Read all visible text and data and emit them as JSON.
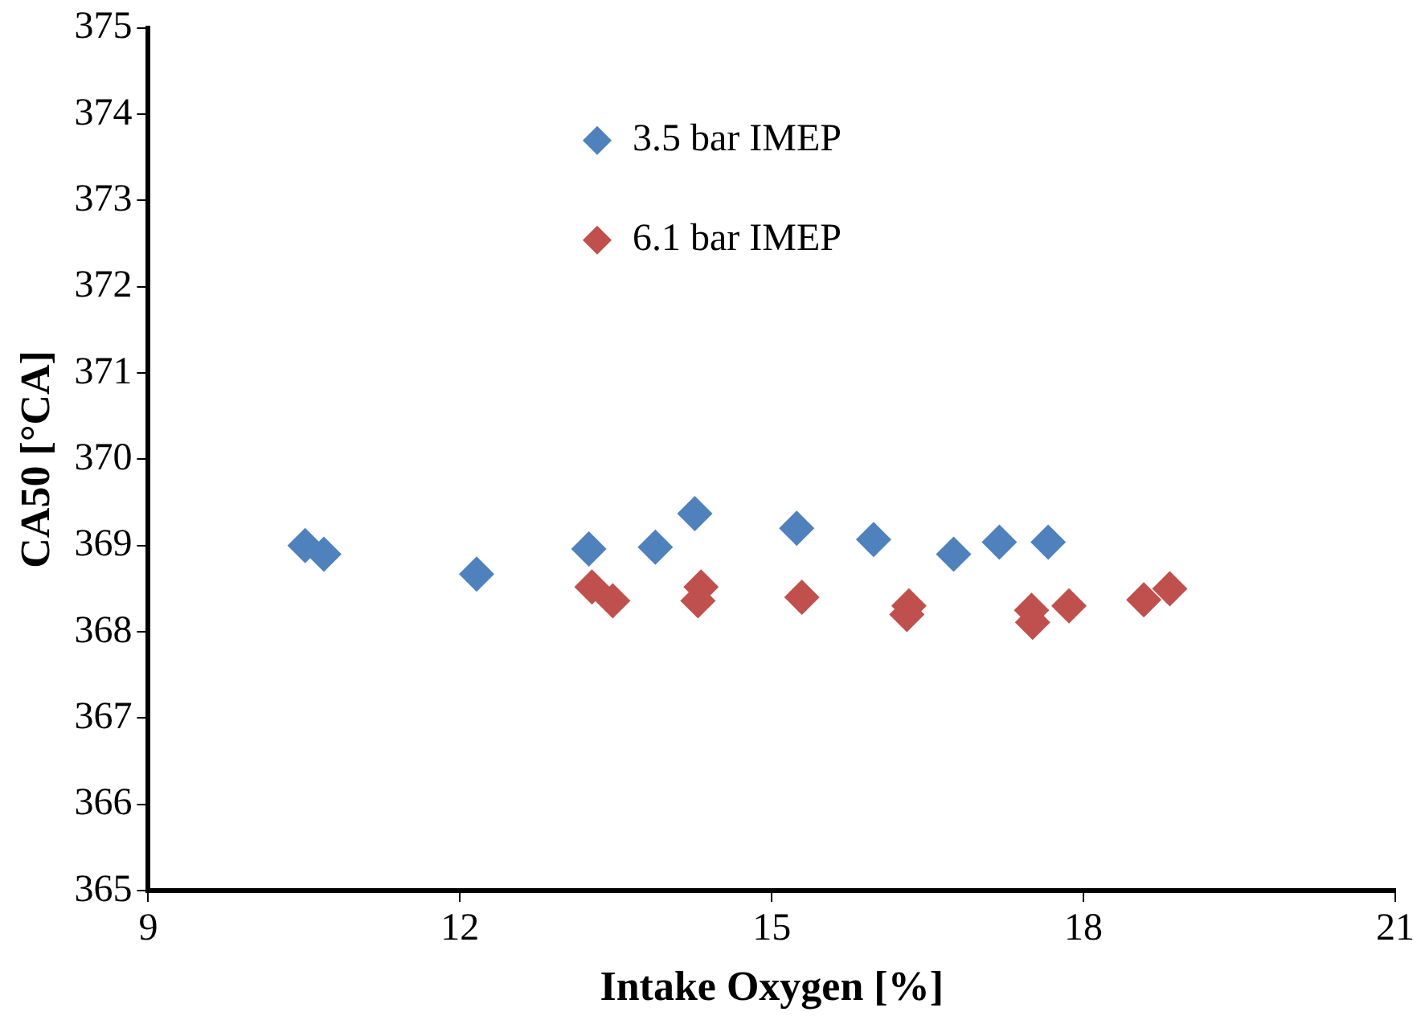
{
  "chart_data": {
    "type": "scatter",
    "xlabel": "Intake Oxygen [%]",
    "ylabel": "CA50 [°CA]",
    "xlim": [
      9,
      21
    ],
    "xticks": [
      9,
      12,
      15,
      18,
      21
    ],
    "ylim": [
      365,
      375
    ],
    "yticks": [
      365,
      366,
      367,
      368,
      369,
      370,
      371,
      372,
      373,
      374,
      375
    ],
    "grid": false,
    "legend": "top",
    "marker": "diamond",
    "series": [
      {
        "name": "3.5 bar IMEP",
        "color": "#4f81bd",
        "x": [
          10.51,
          10.69,
          12.16,
          13.24,
          13.88,
          14.26,
          15.24,
          15.98,
          16.75,
          17.19,
          17.66
        ],
        "values": [
          369.0,
          368.9,
          368.67,
          368.96,
          368.98,
          369.37,
          369.2,
          369.07,
          368.9,
          369.04,
          369.04
        ]
      },
      {
        "name": "6.1 bar IMEP",
        "color": "#c0504d",
        "x": [
          13.27,
          13.47,
          14.32,
          14.29,
          15.29,
          16.32,
          16.3,
          17.5,
          17.51,
          17.86,
          18.58,
          18.83
        ],
        "values": [
          368.52,
          368.36,
          368.52,
          368.36,
          368.4,
          368.3,
          368.2,
          368.25,
          368.11,
          368.3,
          368.37,
          368.5
        ]
      }
    ]
  }
}
